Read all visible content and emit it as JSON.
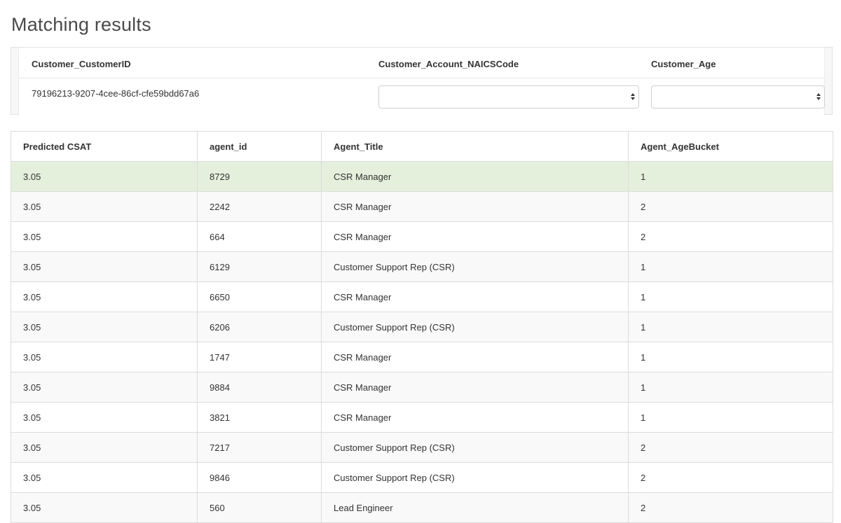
{
  "page": {
    "title": "Matching results"
  },
  "filters": {
    "headers": [
      "Customer_CustomerID",
      "Customer_Account_NAICSCode",
      "Customer_Age"
    ],
    "customer_id": "79196213-9207-4cee-86cf-cfe59bdd67a6",
    "naics_select_value": "",
    "age_select_value": ""
  },
  "results": {
    "columns": [
      "Predicted CSAT",
      "agent_id",
      "Agent_Title",
      "Agent_AgeBucket"
    ],
    "rows": [
      [
        "3.05",
        "8729",
        "CSR Manager",
        "1"
      ],
      [
        "3.05",
        "2242",
        "CSR Manager",
        "2"
      ],
      [
        "3.05",
        "664",
        "CSR Manager",
        "2"
      ],
      [
        "3.05",
        "6129",
        "Customer Support Rep (CSR)",
        "1"
      ],
      [
        "3.05",
        "6650",
        "CSR Manager",
        "1"
      ],
      [
        "3.05",
        "6206",
        "Customer Support Rep (CSR)",
        "1"
      ],
      [
        "3.05",
        "1747",
        "CSR Manager",
        "1"
      ],
      [
        "3.05",
        "9884",
        "CSR Manager",
        "1"
      ],
      [
        "3.05",
        "3821",
        "CSR Manager",
        "1"
      ],
      [
        "3.05",
        "7217",
        "Customer Support Rep (CSR)",
        "2"
      ],
      [
        "3.05",
        "9846",
        "Customer Support Rep (CSR)",
        "2"
      ],
      [
        "3.05",
        "560",
        "Lead Engineer",
        "2"
      ]
    ],
    "highlight_row_color": "#e4f0dc"
  }
}
